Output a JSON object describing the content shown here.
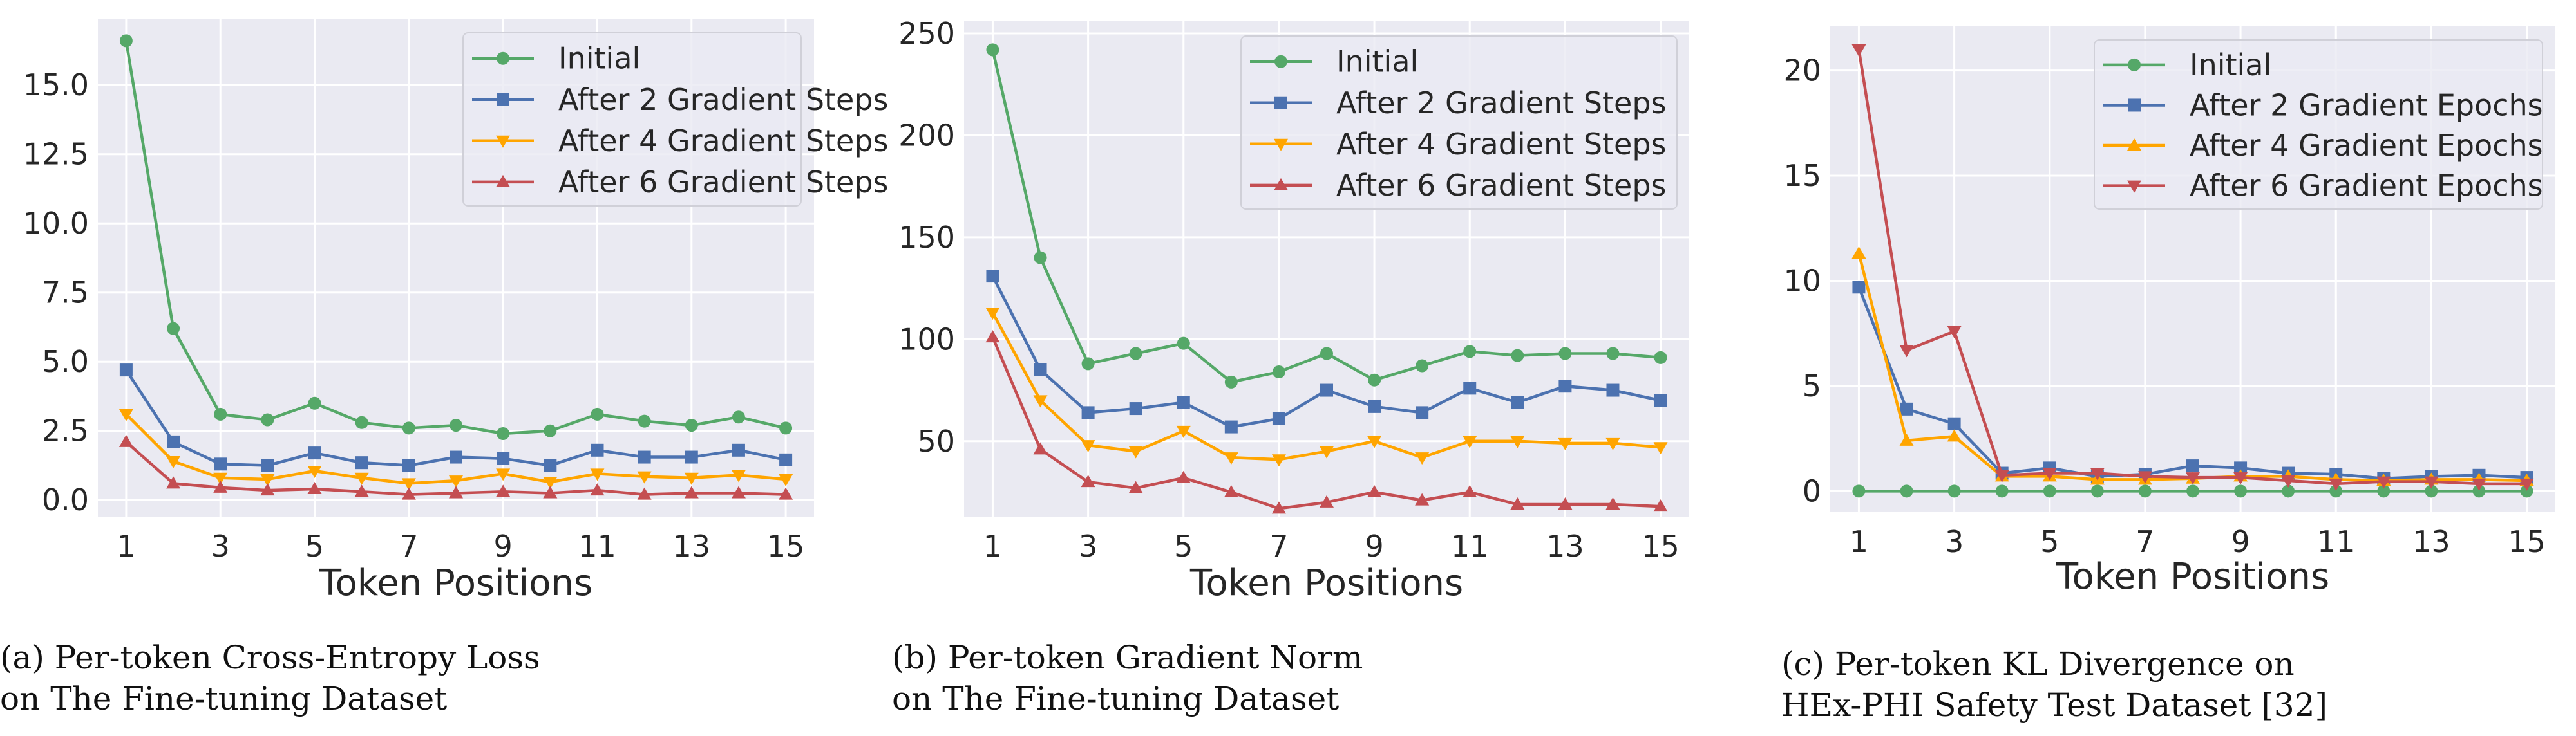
{
  "chart_data": [
    {
      "type": "line",
      "caption_line1": "(a) Per-token Cross-Entropy Loss",
      "caption_line2": "on The Fine-tuning Dataset",
      "xlabel": "Token Positions",
      "ylabel": "",
      "x": [
        1,
        2,
        3,
        4,
        5,
        6,
        7,
        8,
        9,
        10,
        11,
        12,
        13,
        14,
        15
      ],
      "xticks": [
        "1",
        "3",
        "5",
        "7",
        "9",
        "11",
        "13",
        "15"
      ],
      "yticks": [
        "0.0",
        "2.5",
        "5.0",
        "7.5",
        "10.0",
        "12.5",
        "15.0"
      ],
      "ylim": [
        -0.6,
        17.4
      ],
      "grid": true,
      "legend_position": "top-right",
      "series": [
        {
          "name": "Initial",
          "color": "#55a868",
          "marker": "circle",
          "values": [
            16.6,
            6.2,
            3.1,
            2.9,
            3.5,
            2.8,
            2.6,
            2.7,
            2.4,
            2.5,
            3.1,
            2.85,
            2.7,
            3.0,
            2.6
          ]
        },
        {
          "name": "After 2 Gradient Steps",
          "color": "#4c72b0",
          "marker": "square",
          "values": [
            4.7,
            2.1,
            1.3,
            1.25,
            1.7,
            1.35,
            1.25,
            1.55,
            1.5,
            1.25,
            1.8,
            1.55,
            1.55,
            1.8,
            1.45
          ]
        },
        {
          "name": "After 4 Gradient Steps",
          "color": "#ffa500",
          "marker": "triangle-down",
          "values": [
            3.1,
            1.4,
            0.8,
            0.75,
            1.05,
            0.8,
            0.6,
            0.7,
            0.95,
            0.65,
            0.95,
            0.85,
            0.8,
            0.9,
            0.75
          ]
        },
        {
          "name": "After 6 Gradient Steps",
          "color": "#c44e52",
          "marker": "triangle-up",
          "values": [
            2.1,
            0.6,
            0.45,
            0.35,
            0.4,
            0.3,
            0.2,
            0.25,
            0.3,
            0.25,
            0.35,
            0.2,
            0.25,
            0.25,
            0.2
          ]
        }
      ]
    },
    {
      "type": "line",
      "caption_line1": "(b) Per-token Gradient Norm",
      "caption_line2": "on The Fine-tuning Dataset",
      "xlabel": "Token Positions",
      "ylabel": "",
      "x": [
        1,
        2,
        3,
        4,
        5,
        6,
        7,
        8,
        9,
        10,
        11,
        12,
        13,
        14,
        15
      ],
      "xticks": [
        "1",
        "3",
        "5",
        "7",
        "9",
        "11",
        "13",
        "15"
      ],
      "yticks": [
        "50",
        "100",
        "150",
        "200",
        "250"
      ],
      "ylim": [
        13,
        256
      ],
      "grid": true,
      "legend_position": "top-right",
      "series": [
        {
          "name": "Initial",
          "color": "#55a868",
          "marker": "circle",
          "values": [
            242,
            140,
            88,
            93,
            98,
            79,
            84,
            93,
            80,
            87,
            94,
            92,
            93,
            93,
            91
          ]
        },
        {
          "name": "After 2 Gradient Steps",
          "color": "#4c72b0",
          "marker": "square",
          "values": [
            131,
            85,
            64,
            66,
            69,
            57,
            61,
            75,
            67,
            64,
            76,
            69,
            77,
            75,
            70
          ]
        },
        {
          "name": "After 4 Gradient Steps",
          "color": "#ffa500",
          "marker": "triangle-down",
          "values": [
            113,
            70,
            48,
            45,
            55,
            42,
            41,
            45,
            50,
            42,
            50,
            50,
            49,
            49,
            47
          ]
        },
        {
          "name": "After 6 Gradient Steps",
          "color": "#c44e52",
          "marker": "triangle-up",
          "values": [
            101,
            46,
            30,
            27,
            32,
            25,
            17,
            20,
            25,
            21,
            25,
            19,
            19,
            19,
            18
          ]
        }
      ]
    },
    {
      "type": "line",
      "caption_line1": "(c) Per-token KL Divergence on",
      "caption_line2": "HEx-PHI Safety Test Dataset [32]",
      "xlabel": "Token Positions",
      "ylabel": "",
      "x": [
        1,
        2,
        3,
        4,
        5,
        6,
        7,
        8,
        9,
        10,
        11,
        12,
        13,
        14,
        15
      ],
      "xticks": [
        "1",
        "3",
        "5",
        "7",
        "9",
        "11",
        "13",
        "15"
      ],
      "yticks": [
        "0",
        "5",
        "10",
        "15",
        "20"
      ],
      "ylim": [
        -1.0,
        22.1
      ],
      "grid": true,
      "legend_position": "top-right",
      "series": [
        {
          "name": "Initial",
          "color": "#55a868",
          "marker": "circle",
          "values": [
            0,
            0,
            0,
            0,
            0,
            0,
            0,
            0,
            0,
            0,
            0,
            0,
            0,
            0,
            0
          ]
        },
        {
          "name": "After 2 Gradient Epochs",
          "color": "#4c72b0",
          "marker": "square",
          "values": [
            9.7,
            3.9,
            3.2,
            0.85,
            1.1,
            0.7,
            0.8,
            1.2,
            1.1,
            0.85,
            0.8,
            0.6,
            0.7,
            0.75,
            0.65
          ]
        },
        {
          "name": "After 4 Gradient Epochs",
          "color": "#ffa500",
          "marker": "triangle-up",
          "values": [
            11.3,
            2.4,
            2.6,
            0.7,
            0.7,
            0.55,
            0.55,
            0.6,
            0.7,
            0.7,
            0.55,
            0.5,
            0.55,
            0.55,
            0.5
          ]
        },
        {
          "name": "After 6 Gradient Epochs",
          "color": "#c44e52",
          "marker": "triangle-down",
          "values": [
            21.0,
            6.7,
            7.6,
            0.75,
            0.85,
            0.85,
            0.7,
            0.65,
            0.65,
            0.5,
            0.35,
            0.45,
            0.45,
            0.35,
            0.35
          ]
        }
      ]
    }
  ]
}
